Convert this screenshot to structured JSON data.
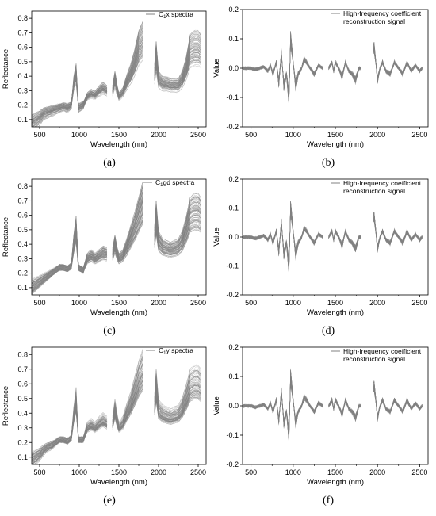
{
  "common": {
    "x_label": "Wavelength (nm)",
    "x_ticks": [
      500,
      1000,
      1500,
      2000,
      2500
    ],
    "xlim": [
      400,
      2600
    ],
    "gap_bands_nm": [
      [
        1355,
        1415
      ],
      [
        1800,
        1950
      ]
    ],
    "series_color": "#808080"
  },
  "chart_data": [
    {
      "panel": "a",
      "type": "line",
      "legend_main": "C",
      "legend_sub": "1",
      "legend_rest": "x spectra",
      "ylabel": "Reflectance",
      "ylim": [
        0.05,
        0.85
      ],
      "y_ticks": [
        0.1,
        0.2,
        0.3,
        0.4,
        0.5,
        0.6,
        0.7,
        0.8
      ],
      "mean_curve": {
        "x": [
          400,
          450,
          500,
          550,
          600,
          650,
          700,
          750,
          800,
          850,
          900,
          930,
          960,
          990,
          1050,
          1100,
          1150,
          1200,
          1250,
          1300,
          1350,
          1420,
          1450,
          1480,
          1500,
          1550,
          1600,
          1650,
          1700,
          1750,
          1800,
          1950,
          1970,
          2000,
          2050,
          2100,
          2150,
          2200,
          2250,
          2300,
          2350,
          2400,
          2450,
          2500,
          2530
        ],
        "y": [
          0.07,
          0.09,
          0.11,
          0.14,
          0.15,
          0.16,
          0.17,
          0.18,
          0.19,
          0.18,
          0.2,
          0.35,
          0.42,
          0.18,
          0.2,
          0.26,
          0.28,
          0.27,
          0.3,
          0.32,
          0.3,
          0.3,
          0.38,
          0.3,
          0.26,
          0.29,
          0.36,
          0.42,
          0.5,
          0.6,
          0.65,
          0.42,
          0.54,
          0.38,
          0.35,
          0.35,
          0.34,
          0.34,
          0.34,
          0.38,
          0.46,
          0.58,
          0.6,
          0.6,
          0.58
        ]
      },
      "series_count": 80
    },
    {
      "panel": "b",
      "type": "line",
      "legend_line1": "High-frequency coefficient",
      "legend_line2": "reconstruction signal",
      "ylabel": "Value",
      "ylim": [
        -0.2,
        0.2
      ],
      "y_ticks": [
        -0.2,
        -0.1,
        0.0,
        0.1,
        0.2
      ],
      "mean_curve": {
        "x": [
          400,
          500,
          550,
          600,
          650,
          700,
          730,
          760,
          800,
          830,
          860,
          890,
          920,
          950,
          970,
          1000,
          1030,
          1060,
          1100,
          1130,
          1160,
          1200,
          1250,
          1300,
          1350,
          1420,
          1460,
          1480,
          1500,
          1540,
          1580,
          1620,
          1660,
          1700,
          1740,
          1780,
          1800,
          1960,
          1980,
          2000,
          2030,
          2060,
          2100,
          2150,
          2200,
          2250,
          2300,
          2350,
          2400,
          2450,
          2500,
          2530
        ],
        "y": [
          0.0,
          0.0,
          -0.005,
          0.0,
          0.005,
          -0.01,
          0.01,
          -0.02,
          0.02,
          -0.05,
          0.05,
          -0.06,
          -0.02,
          -0.1,
          0.1,
          0.02,
          -0.06,
          -0.02,
          0.0,
          0.03,
          0.02,
          0.0,
          -0.02,
          0.01,
          0.0,
          0.0,
          0.02,
          -0.01,
          0.02,
          0.0,
          -0.03,
          0.02,
          -0.01,
          -0.02,
          -0.04,
          0.0,
          0.0,
          0.07,
          0.02,
          -0.04,
          0.0,
          0.02,
          -0.01,
          -0.02,
          0.02,
          0.0,
          -0.02,
          0.02,
          -0.01,
          0.01,
          -0.01,
          0.0
        ]
      },
      "series_count": 60
    },
    {
      "panel": "c",
      "type": "line",
      "legend_main": "C",
      "legend_sub": "1",
      "legend_rest": "gd spectra",
      "ylabel": "Reflectance",
      "ylim": [
        0.05,
        0.85
      ],
      "y_ticks": [
        0.1,
        0.2,
        0.3,
        0.4,
        0.5,
        0.6,
        0.7,
        0.8
      ],
      "mean_curve": {
        "x": [
          400,
          450,
          500,
          550,
          600,
          650,
          700,
          750,
          800,
          850,
          900,
          930,
          960,
          990,
          1050,
          1100,
          1150,
          1200,
          1250,
          1300,
          1350,
          1420,
          1450,
          1480,
          1500,
          1550,
          1600,
          1650,
          1700,
          1750,
          1800,
          1950,
          1970,
          2000,
          2050,
          2100,
          2150,
          2200,
          2250,
          2300,
          2350,
          2400,
          2450,
          2500,
          2530
        ],
        "y": [
          0.1,
          0.12,
          0.14,
          0.16,
          0.18,
          0.2,
          0.22,
          0.24,
          0.24,
          0.23,
          0.25,
          0.4,
          0.5,
          0.24,
          0.22,
          0.3,
          0.32,
          0.3,
          0.32,
          0.34,
          0.33,
          0.33,
          0.4,
          0.33,
          0.3,
          0.32,
          0.38,
          0.45,
          0.52,
          0.6,
          0.68,
          0.45,
          0.58,
          0.42,
          0.38,
          0.37,
          0.36,
          0.37,
          0.38,
          0.42,
          0.5,
          0.6,
          0.62,
          0.62,
          0.6
        ]
      },
      "series_count": 90
    },
    {
      "panel": "d",
      "type": "line",
      "legend_line1": "High-frequency coefficient",
      "legend_line2": "reconstruction signal",
      "ylabel": "Value",
      "ylim": [
        -0.2,
        0.2
      ],
      "y_ticks": [
        -0.2,
        -0.1,
        0.0,
        0.1,
        0.2
      ],
      "mean_curve": {
        "x": [
          400,
          500,
          550,
          600,
          650,
          700,
          730,
          760,
          800,
          830,
          860,
          890,
          920,
          950,
          970,
          1000,
          1030,
          1060,
          1100,
          1130,
          1160,
          1200,
          1250,
          1300,
          1350,
          1420,
          1460,
          1480,
          1500,
          1540,
          1580,
          1620,
          1660,
          1700,
          1740,
          1780,
          1800,
          1960,
          1980,
          2000,
          2030,
          2060,
          2100,
          2150,
          2200,
          2250,
          2300,
          2350,
          2400,
          2450,
          2500,
          2530
        ],
        "y": [
          0.0,
          0.0,
          -0.005,
          0.0,
          0.005,
          -0.01,
          0.01,
          -0.02,
          0.02,
          -0.05,
          0.05,
          -0.06,
          -0.02,
          -0.1,
          0.1,
          0.02,
          -0.06,
          -0.02,
          0.0,
          0.03,
          0.02,
          0.0,
          -0.02,
          0.01,
          0.0,
          0.0,
          0.02,
          -0.01,
          0.02,
          0.0,
          -0.03,
          0.02,
          -0.01,
          -0.02,
          -0.04,
          0.0,
          0.0,
          0.07,
          0.02,
          -0.04,
          0.0,
          0.02,
          -0.01,
          -0.02,
          0.02,
          0.0,
          -0.02,
          0.02,
          -0.01,
          0.01,
          -0.01,
          0.0
        ]
      },
      "series_count": 60
    },
    {
      "panel": "e",
      "type": "line",
      "legend_main": "C",
      "legend_sub": "1",
      "legend_rest": "y spectra",
      "ylabel": "Reflectance",
      "ylim": [
        0.05,
        0.85
      ],
      "y_ticks": [
        0.1,
        0.2,
        0.3,
        0.4,
        0.5,
        0.6,
        0.7,
        0.8
      ],
      "mean_curve": {
        "x": [
          400,
          450,
          500,
          550,
          600,
          650,
          700,
          750,
          800,
          850,
          900,
          930,
          960,
          990,
          1050,
          1100,
          1150,
          1200,
          1250,
          1300,
          1350,
          1420,
          1450,
          1480,
          1500,
          1550,
          1600,
          1650,
          1700,
          1750,
          1800,
          1950,
          1970,
          2000,
          2050,
          2100,
          2150,
          2200,
          2250,
          2300,
          2350,
          2400,
          2450,
          2500,
          2530
        ],
        "y": [
          0.08,
          0.1,
          0.12,
          0.15,
          0.17,
          0.18,
          0.2,
          0.22,
          0.22,
          0.21,
          0.23,
          0.38,
          0.48,
          0.22,
          0.22,
          0.3,
          0.32,
          0.3,
          0.33,
          0.35,
          0.33,
          0.33,
          0.42,
          0.34,
          0.3,
          0.33,
          0.4,
          0.46,
          0.54,
          0.62,
          0.68,
          0.45,
          0.58,
          0.42,
          0.39,
          0.38,
          0.37,
          0.38,
          0.39,
          0.43,
          0.5,
          0.58,
          0.6,
          0.6,
          0.58
        ]
      },
      "series_count": 80
    },
    {
      "panel": "f",
      "type": "line",
      "legend_line1": "High-frequency coefficient",
      "legend_line2": "reconstruction signal",
      "ylabel": "Value",
      "ylim": [
        -0.2,
        0.2
      ],
      "y_ticks": [
        -0.2,
        -0.1,
        0.0,
        0.1,
        0.2
      ],
      "mean_curve": {
        "x": [
          400,
          500,
          550,
          600,
          650,
          700,
          730,
          760,
          800,
          830,
          860,
          890,
          920,
          950,
          970,
          1000,
          1030,
          1060,
          1100,
          1130,
          1160,
          1200,
          1250,
          1300,
          1350,
          1420,
          1460,
          1480,
          1500,
          1540,
          1580,
          1620,
          1660,
          1700,
          1740,
          1780,
          1800,
          1960,
          1980,
          2000,
          2030,
          2060,
          2100,
          2150,
          2200,
          2250,
          2300,
          2350,
          2400,
          2450,
          2500,
          2530
        ],
        "y": [
          0.0,
          0.0,
          -0.005,
          0.0,
          0.005,
          -0.01,
          0.01,
          -0.02,
          0.02,
          -0.05,
          0.05,
          -0.06,
          -0.02,
          -0.1,
          0.1,
          0.02,
          -0.06,
          -0.02,
          0.0,
          0.03,
          0.02,
          0.0,
          -0.02,
          0.01,
          0.0,
          0.0,
          0.02,
          -0.01,
          0.02,
          0.0,
          -0.03,
          0.02,
          -0.01,
          -0.02,
          -0.04,
          0.0,
          0.0,
          0.07,
          0.02,
          -0.04,
          0.0,
          0.02,
          -0.01,
          -0.02,
          0.02,
          0.0,
          -0.02,
          0.02,
          -0.01,
          0.01,
          -0.01,
          0.0
        ]
      },
      "series_count": 60
    }
  ]
}
